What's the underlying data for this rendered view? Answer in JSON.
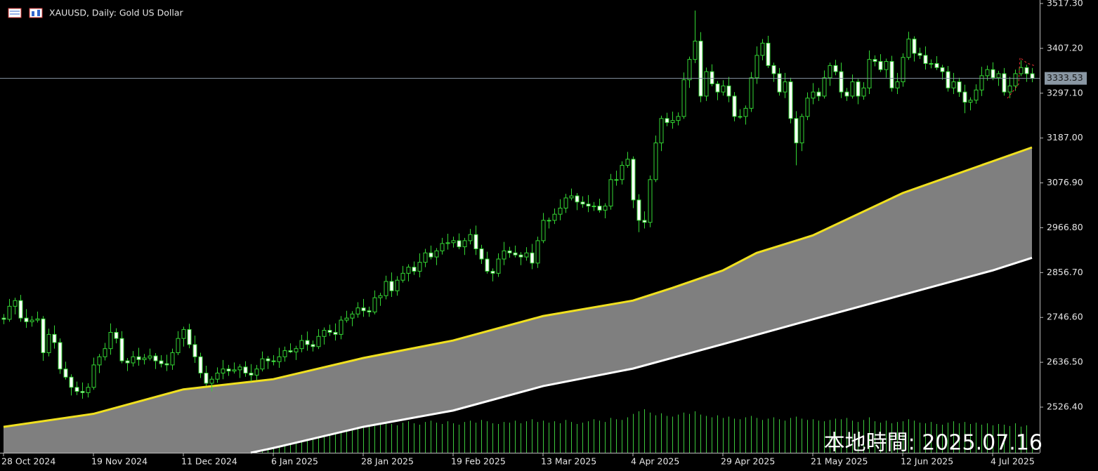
{
  "chart_data": {
    "type": "candlestick",
    "title": "XAUUSD, Daily:  Gold US Dollar",
    "watermark": "本地時間: 2025.07.16",
    "ylim": [
      2414.4,
      3525.9
    ],
    "yticks": [
      {
        "value": 3517.3,
        "label": "3517.30"
      },
      {
        "value": 3407.2,
        "label": "3407.20"
      },
      {
        "value": 3297.1,
        "label": "3297.10"
      },
      {
        "value": 3187,
        "label": "3187.00"
      },
      {
        "value": 3076.9,
        "label": "3076.90"
      },
      {
        "value": 2966.8,
        "label": "2966.80"
      },
      {
        "value": 2856.7,
        "label": "2856.70"
      },
      {
        "value": 2746.6,
        "label": "2746.60"
      },
      {
        "value": 2636.5,
        "label": "2636.50"
      },
      {
        "value": 2526.4,
        "label": "2526.40"
      }
    ],
    "xticks": [
      {
        "value": 0,
        "label": "28 Oct 2024"
      },
      {
        "value": 16,
        "label": "19 Nov 2024"
      },
      {
        "value": 32,
        "label": "11 Dec 2024"
      },
      {
        "value": 48,
        "label": "6 Jan 2025"
      },
      {
        "value": 64,
        "label": "28 Jan 2025"
      },
      {
        "value": 80,
        "label": "19 Feb 2025"
      },
      {
        "value": 96,
        "label": "13 Mar 2025"
      },
      {
        "value": 112,
        "label": "4 Apr 2025"
      },
      {
        "value": 128,
        "label": "29 Apr 2025"
      },
      {
        "value": 144,
        "label": "21 May 2025"
      },
      {
        "value": 160,
        "label": "12 Jun 2025"
      },
      {
        "value": 176,
        "label": "4 Jul 2025"
      }
    ],
    "up_color": "#000000",
    "down_color": "#ffffff",
    "wick_color": "#33d633",
    "volume_color": "#3cc83c",
    "fill_color": "#7f7f7f",
    "ohlc": [
      [
        2745,
        2755,
        2730,
        2742
      ],
      [
        2742,
        2792,
        2736,
        2774
      ],
      [
        2774,
        2795,
        2754,
        2788
      ],
      [
        2788,
        2802,
        2736,
        2745
      ],
      [
        2745,
        2767,
        2721,
        2736
      ],
      [
        2736,
        2750,
        2724,
        2740
      ],
      [
        2740,
        2761,
        2734,
        2743
      ],
      [
        2743,
        2750,
        2640,
        2660
      ],
      [
        2660,
        2719,
        2651,
        2705
      ],
      [
        2705,
        2727,
        2670,
        2685
      ],
      [
        2685,
        2695,
        2608,
        2620
      ],
      [
        2620,
        2638,
        2594,
        2600
      ],
      [
        2600,
        2607,
        2555,
        2575
      ],
      [
        2575,
        2589,
        2556,
        2565
      ],
      [
        2565,
        2587,
        2547,
        2562
      ],
      [
        2562,
        2585,
        2550,
        2575
      ],
      [
        2575,
        2648,
        2569,
        2630
      ],
      [
        2630,
        2657,
        2610,
        2650
      ],
      [
        2650,
        2684,
        2641,
        2670
      ],
      [
        2670,
        2732,
        2655,
        2710
      ],
      [
        2710,
        2720,
        2683,
        2695
      ],
      [
        2695,
        2713,
        2634,
        2640
      ],
      [
        2640,
        2647,
        2615,
        2635
      ],
      [
        2635,
        2664,
        2626,
        2650
      ],
      [
        2650,
        2672,
        2628,
        2643
      ],
      [
        2643,
        2657,
        2631,
        2647
      ],
      [
        2647,
        2670,
        2641,
        2652
      ],
      [
        2652,
        2659,
        2620,
        2640
      ],
      [
        2640,
        2654,
        2624,
        2633
      ],
      [
        2633,
        2655,
        2615,
        2630
      ],
      [
        2630,
        2670,
        2618,
        2660
      ],
      [
        2660,
        2713,
        2654,
        2695
      ],
      [
        2695,
        2724,
        2675,
        2717
      ],
      [
        2717,
        2731,
        2671,
        2680
      ],
      [
        2680,
        2702,
        2635,
        2650
      ],
      [
        2650,
        2660,
        2598,
        2610
      ],
      [
        2610,
        2628,
        2579,
        2585
      ],
      [
        2585,
        2602,
        2565,
        2595
      ],
      [
        2595,
        2624,
        2586,
        2610
      ],
      [
        2610,
        2642,
        2595,
        2620
      ],
      [
        2620,
        2630,
        2603,
        2615
      ],
      [
        2615,
        2636,
        2609,
        2618
      ],
      [
        2618,
        2632,
        2598,
        2625
      ],
      [
        2625,
        2639,
        2601,
        2610
      ],
      [
        2610,
        2632,
        2590,
        2605
      ],
      [
        2605,
        2630,
        2593,
        2620
      ],
      [
        2620,
        2663,
        2614,
        2645
      ],
      [
        2645,
        2652,
        2620,
        2640
      ],
      [
        2640,
        2654,
        2629,
        2638
      ],
      [
        2638,
        2672,
        2623,
        2650
      ],
      [
        2650,
        2675,
        2638,
        2665
      ],
      [
        2665,
        2683,
        2659,
        2662
      ],
      [
        2662,
        2677,
        2642,
        2670
      ],
      [
        2670,
        2704,
        2661,
        2690
      ],
      [
        2690,
        2712,
        2665,
        2680
      ],
      [
        2680,
        2690,
        2663,
        2675
      ],
      [
        2675,
        2718,
        2669,
        2700
      ],
      [
        2700,
        2722,
        2680,
        2715
      ],
      [
        2715,
        2729,
        2701,
        2710
      ],
      [
        2710,
        2732,
        2690,
        2705
      ],
      [
        2705,
        2750,
        2693,
        2740
      ],
      [
        2740,
        2763,
        2734,
        2745
      ],
      [
        2745,
        2762,
        2725,
        2755
      ],
      [
        2755,
        2784,
        2746,
        2770
      ],
      [
        2770,
        2792,
        2748,
        2763
      ],
      [
        2763,
        2773,
        2748,
        2760
      ],
      [
        2760,
        2813,
        2754,
        2795
      ],
      [
        2795,
        2807,
        2775,
        2800
      ],
      [
        2800,
        2849,
        2791,
        2835
      ],
      [
        2835,
        2857,
        2797,
        2812
      ],
      [
        2812,
        2848,
        2800,
        2838
      ],
      [
        2838,
        2873,
        2832,
        2855
      ],
      [
        2855,
        2877,
        2835,
        2870
      ],
      [
        2870,
        2884,
        2851,
        2860
      ],
      [
        2860,
        2904,
        2845,
        2882
      ],
      [
        2882,
        2915,
        2870,
        2905
      ],
      [
        2905,
        2923,
        2889,
        2895
      ],
      [
        2895,
        2917,
        2875,
        2910
      ],
      [
        2910,
        2942,
        2901,
        2928
      ],
      [
        2928,
        2952,
        2913,
        2930
      ],
      [
        2930,
        2945,
        2918,
        2935
      ],
      [
        2935,
        2953,
        2914,
        2920
      ],
      [
        2920,
        2942,
        2900,
        2935
      ],
      [
        2935,
        2964,
        2926,
        2950
      ],
      [
        2950,
        2972,
        2900,
        2915
      ],
      [
        2915,
        2925,
        2878,
        2890
      ],
      [
        2890,
        2908,
        2854,
        2860
      ],
      [
        2860,
        2867,
        2835,
        2855
      ],
      [
        2855,
        2904,
        2846,
        2890
      ],
      [
        2890,
        2932,
        2875,
        2910
      ],
      [
        2910,
        2920,
        2893,
        2905
      ],
      [
        2905,
        2923,
        2894,
        2900
      ],
      [
        2900,
        2907,
        2875,
        2895
      ],
      [
        2895,
        2919,
        2886,
        2905
      ],
      [
        2905,
        2927,
        2865,
        2880
      ],
      [
        2880,
        2945,
        2868,
        2935
      ],
      [
        2935,
        3003,
        2929,
        2985
      ],
      [
        2985,
        2992,
        2965,
        2985
      ],
      [
        2985,
        3014,
        2976,
        3000
      ],
      [
        3000,
        3037,
        2985,
        3015
      ],
      [
        3015,
        3050,
        3003,
        3040
      ],
      [
        3040,
        3063,
        3034,
        3045
      ],
      [
        3045,
        3052,
        3010,
        3030
      ],
      [
        3030,
        3044,
        3016,
        3025
      ],
      [
        3025,
        3047,
        3005,
        3020
      ],
      [
        3020,
        3030,
        3008,
        3020
      ],
      [
        3020,
        3038,
        3004,
        3010
      ],
      [
        3010,
        3027,
        2990,
        3020
      ],
      [
        3020,
        3099,
        3011,
        3085
      ],
      [
        3085,
        3107,
        3070,
        3085
      ],
      [
        3085,
        3130,
        3073,
        3120
      ],
      [
        3120,
        3153,
        3114,
        3135
      ],
      [
        3135,
        3142,
        3015,
        3035
      ],
      [
        3035,
        3049,
        2956,
        2985
      ],
      [
        2985,
        3007,
        2965,
        2980
      ],
      [
        2980,
        3095,
        2968,
        3085
      ],
      [
        3085,
        3193,
        3079,
        3175
      ],
      [
        3175,
        3242,
        3155,
        3235
      ],
      [
        3235,
        3249,
        3216,
        3225
      ],
      [
        3225,
        3252,
        3210,
        3230
      ],
      [
        3230,
        3250,
        3218,
        3240
      ],
      [
        3240,
        3348,
        3234,
        3330
      ],
      [
        3330,
        3387,
        3310,
        3380
      ],
      [
        3380,
        3500,
        3371,
        3425
      ],
      [
        3425,
        3447,
        3275,
        3290
      ],
      [
        3290,
        3360,
        3278,
        3350
      ],
      [
        3350,
        3368,
        3314,
        3320
      ],
      [
        3320,
        3327,
        3280,
        3300
      ],
      [
        3300,
        3329,
        3291,
        3315
      ],
      [
        3315,
        3337,
        3275,
        3290
      ],
      [
        3290,
        3300,
        3228,
        3240
      ],
      [
        3240,
        3258,
        3234,
        3240
      ],
      [
        3240,
        3267,
        3220,
        3260
      ],
      [
        3260,
        3349,
        3251,
        3335
      ],
      [
        3335,
        3412,
        3320,
        3390
      ],
      [
        3390,
        3430,
        3378,
        3420
      ],
      [
        3420,
        3438,
        3359,
        3365
      ],
      [
        3365,
        3372,
        3325,
        3345
      ],
      [
        3345,
        3359,
        3291,
        3300
      ],
      [
        3300,
        3347,
        3285,
        3325
      ],
      [
        3325,
        3335,
        3223,
        3235
      ],
      [
        3235,
        3253,
        3120,
        3175
      ],
      [
        3175,
        3247,
        3155,
        3240
      ],
      [
        3240,
        3299,
        3231,
        3285
      ],
      [
        3285,
        3322,
        3270,
        3300
      ],
      [
        3300,
        3310,
        3278,
        3290
      ],
      [
        3290,
        3353,
        3284,
        3335
      ],
      [
        3335,
        3372,
        3315,
        3365
      ],
      [
        3365,
        3379,
        3341,
        3350
      ],
      [
        3350,
        3372,
        3285,
        3300
      ],
      [
        3300,
        3310,
        3278,
        3290
      ],
      [
        3290,
        3343,
        3284,
        3325
      ],
      [
        3325,
        3332,
        3270,
        3290
      ],
      [
        3290,
        3324,
        3281,
        3310
      ],
      [
        3310,
        3402,
        3295,
        3380
      ],
      [
        3380,
        3390,
        3363,
        3375
      ],
      [
        3375,
        3393,
        3349,
        3355
      ],
      [
        3355,
        3382,
        3335,
        3375
      ],
      [
        3375,
        3389,
        3301,
        3310
      ],
      [
        3310,
        3347,
        3295,
        3325
      ],
      [
        3325,
        3395,
        3313,
        3385
      ],
      [
        3385,
        3448,
        3379,
        3430
      ],
      [
        3430,
        3437,
        3375,
        3395
      ],
      [
        3395,
        3409,
        3381,
        3390
      ],
      [
        3390,
        3412,
        3355,
        3370
      ],
      [
        3370,
        3380,
        3358,
        3370
      ],
      [
        3370,
        3388,
        3354,
        3360
      ],
      [
        3360,
        3367,
        3330,
        3350
      ],
      [
        3350,
        3364,
        3301,
        3310
      ],
      [
        3310,
        3347,
        3295,
        3325
      ],
      [
        3325,
        3335,
        3288,
        3300
      ],
      [
        3300,
        3318,
        3248,
        3275
      ],
      [
        3275,
        3287,
        3255,
        3280
      ],
      [
        3280,
        3319,
        3271,
        3305
      ],
      [
        3305,
        3362,
        3290,
        3340
      ],
      [
        3340,
        3365,
        3328,
        3355
      ],
      [
        3355,
        3373,
        3329,
        3335
      ],
      [
        3335,
        3352,
        3315,
        3345
      ],
      [
        3345,
        3359,
        3291,
        3300
      ],
      [
        3300,
        3337,
        3285,
        3315
      ],
      [
        3315,
        3355,
        3303,
        3345
      ],
      [
        3345,
        3378,
        3339,
        3360
      ],
      [
        3360,
        3367,
        3325,
        3345
      ],
      [
        3345,
        3359,
        3324,
        3333.53
      ]
    ],
    "volume": [
      30,
      34,
      36,
      33,
      38,
      40,
      35,
      42,
      37,
      33,
      39,
      41,
      36,
      34,
      38,
      32,
      35,
      37,
      40,
      36,
      33,
      38,
      35,
      31,
      34,
      36,
      32,
      30,
      29,
      33,
      35,
      38,
      40,
      37,
      36,
      39,
      34,
      22,
      30,
      28,
      32,
      35,
      33,
      31,
      36,
      34,
      38,
      33,
      36,
      38,
      35,
      40,
      37,
      33,
      39,
      41,
      36,
      42,
      38,
      40,
      43,
      39,
      44,
      41,
      45,
      42,
      40,
      44,
      46,
      43,
      41,
      45,
      47,
      44,
      42,
      46,
      48,
      45,
      43,
      47,
      44,
      42,
      46,
      48,
      45,
      49,
      47,
      44,
      43,
      46,
      45,
      48,
      44,
      47,
      50,
      46,
      48,
      45,
      47,
      44,
      49,
      46,
      43,
      45,
      47,
      50,
      48,
      46,
      52,
      50,
      49,
      53,
      58,
      62,
      65,
      60,
      56,
      59,
      55,
      54,
      57,
      60,
      58,
      62,
      57,
      55,
      53,
      56,
      52,
      54,
      51,
      50,
      53,
      55,
      52,
      49,
      51,
      53,
      50,
      48,
      52,
      54,
      51,
      49,
      50,
      48,
      47,
      49,
      51,
      50,
      52,
      48,
      46,
      49,
      53,
      47,
      45,
      48,
      44,
      46,
      47,
      50,
      48,
      45,
      44,
      46,
      43,
      42,
      45,
      47,
      44,
      46,
      43,
      45,
      42,
      44,
      41,
      43,
      42,
      40,
      44,
      39,
      41,
      20
    ],
    "series": [
      {
        "color": "#f0e020",
        "x": [
          0,
          16,
          32,
          48,
          64,
          80,
          96,
          112,
          119,
          128,
          134,
          144,
          160,
          176,
          183
        ],
        "values": [
          2478,
          2510,
          2570,
          2595,
          2647,
          2690,
          2750,
          2788,
          2819,
          2862,
          2905,
          2948,
          3052,
          3130,
          3164
        ]
      },
      {
        "color": "#ffffff",
        "x": [
          44,
          48,
          64,
          80,
          96,
          112,
          128,
          144,
          160,
          176,
          183
        ],
        "values": [
          2414.4,
          2426,
          2478,
          2518,
          2578,
          2621,
          2681,
          2742,
          2802,
          2862,
          2893
        ]
      }
    ]
  }
}
